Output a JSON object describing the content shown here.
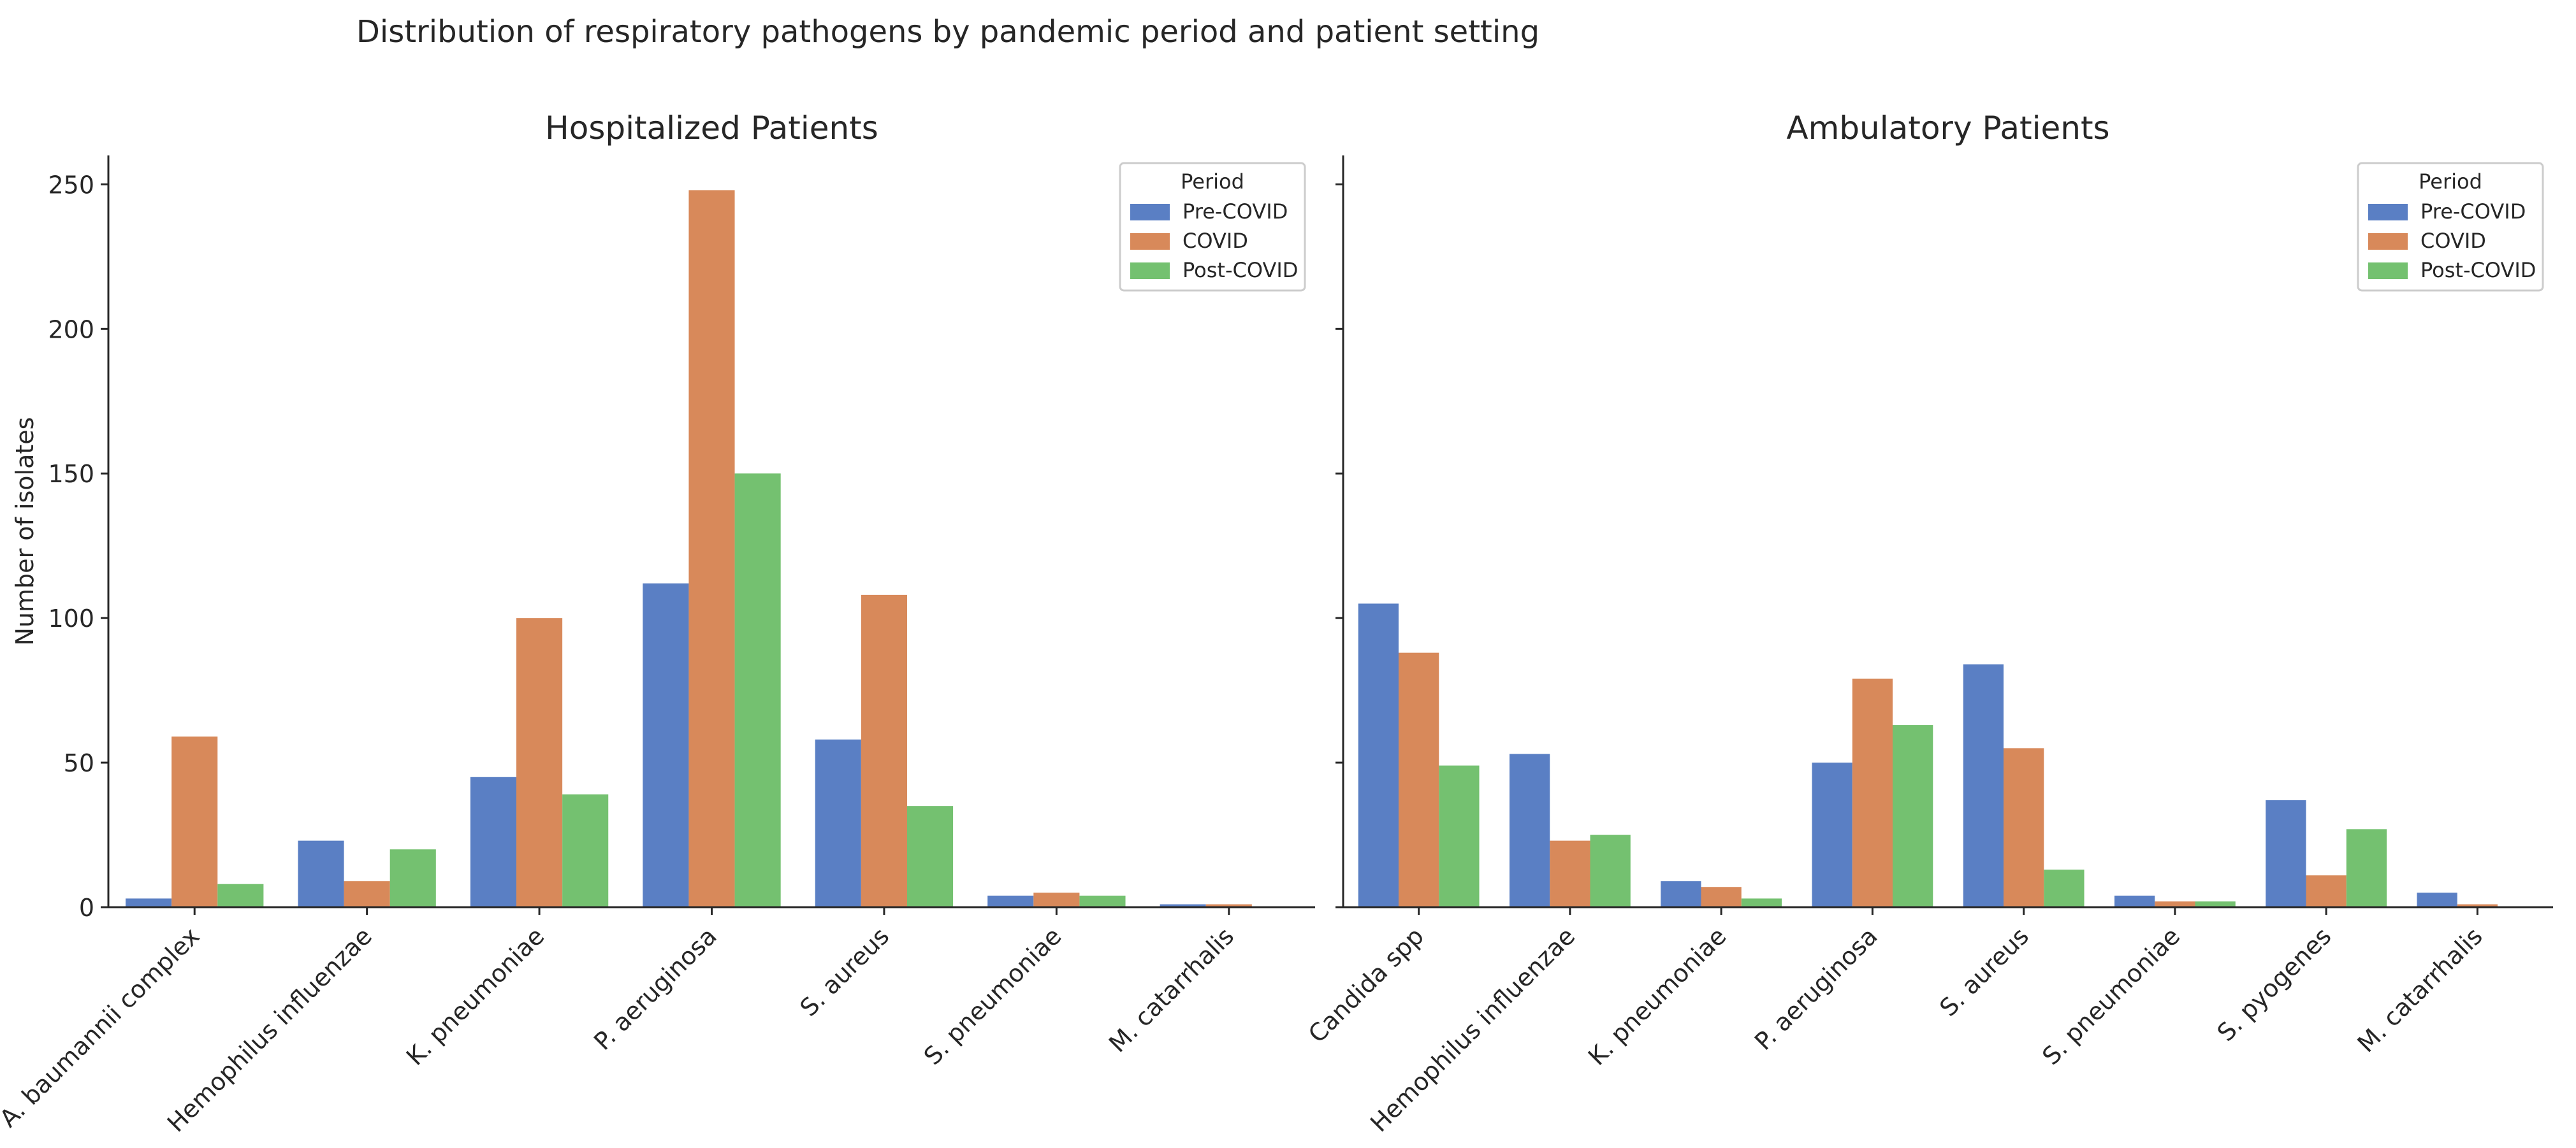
{
  "figure_title": "Distribution of respiratory pathogens by pandemic period and patient setting",
  "colors": {
    "Pre-COVID": "#5a7fc4",
    "COVID": "#d8895a",
    "Post-COVID": "#74c170",
    "axis": "#262626",
    "legend_border": "#cccccc"
  },
  "chart_data": [
    {
      "type": "bar",
      "title": "Hospitalized Patients",
      "xlabel": "",
      "ylabel": "Number of isolates",
      "ylim": [
        0,
        260
      ],
      "yticks": [
        0,
        50,
        100,
        150,
        200,
        250
      ],
      "legend": {
        "title": "Period",
        "placement": "top-right"
      },
      "categories": [
        "A. baumannii complex",
        "Hemophilus influenzae",
        "K. pneumoniae",
        "P. aeruginosa",
        "S. aureus",
        "S. pneumoniae",
        "M. catarrhalis"
      ],
      "series": [
        {
          "name": "Pre-COVID",
          "values": [
            3,
            23,
            45,
            112,
            58,
            4,
            1
          ]
        },
        {
          "name": "COVID",
          "values": [
            59,
            9,
            100,
            248,
            108,
            5,
            1
          ]
        },
        {
          "name": "Post-COVID",
          "values": [
            8,
            20,
            39,
            150,
            35,
            4,
            0
          ]
        }
      ]
    },
    {
      "type": "bar",
      "title": "Ambulatory Patients",
      "xlabel": "",
      "ylabel": "",
      "ylim": [
        0,
        260
      ],
      "yticks": [
        0,
        50,
        100,
        150,
        200,
        250
      ],
      "legend": {
        "title": "Period",
        "placement": "top-right"
      },
      "categories": [
        "Candida spp",
        "Hemophilus influenzae",
        "K. pneumoniae",
        "P. aeruginosa",
        "S. aureus",
        "S. pneumoniae",
        "S. pyogenes",
        "M. catarrhalis"
      ],
      "series": [
        {
          "name": "Pre-COVID",
          "values": [
            105,
            53,
            9,
            50,
            84,
            4,
            37,
            5
          ]
        },
        {
          "name": "COVID",
          "values": [
            88,
            23,
            7,
            79,
            55,
            2,
            11,
            1
          ]
        },
        {
          "name": "Post-COVID",
          "values": [
            49,
            25,
            3,
            63,
            13,
            2,
            27,
            0
          ]
        }
      ]
    }
  ]
}
